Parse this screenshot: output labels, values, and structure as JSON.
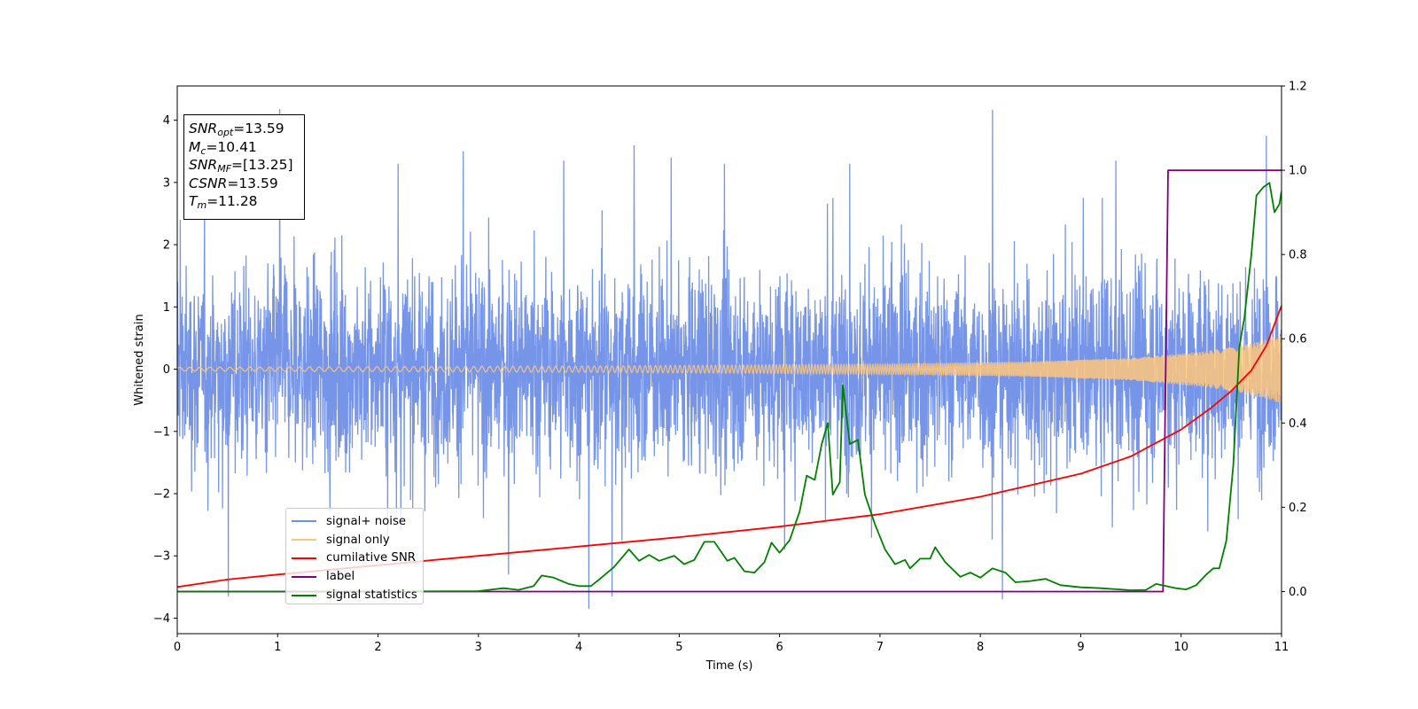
{
  "info_box": {
    "snr_opt_base": "SNR",
    "snr_opt_sub": "opt",
    "snr_opt_value": "=13.59",
    "mc_base": "M",
    "mc_sub": "c",
    "mc_value": "=10.41",
    "snr_mf_base": "SNR",
    "snr_mf_sub": "MF",
    "snr_mf_value": "=[13.25]",
    "csnr_base": "CSNR",
    "csnr_value": "=13.59",
    "tm_base": "T",
    "tm_sub": "m",
    "tm_value": "=11.28"
  },
  "legend": [
    {
      "label": "signal+ noise",
      "color": "#6f8fe8"
    },
    {
      "label": "signal only",
      "color": "#ffc77a"
    },
    {
      "label": "cumilative SNR",
      "color": "#ff0000"
    },
    {
      "label": "label",
      "color": "#800080"
    },
    {
      "label": "signal statistics",
      "color": "#008000"
    }
  ],
  "chart_data": {
    "type": "line",
    "xlabel": "Time (s)",
    "ylabel_left": "Whitened strain",
    "ylabel_right": "",
    "xlim": [
      0,
      11
    ],
    "ylim_left": [
      -4.25,
      4.55
    ],
    "ylim_right": [
      -0.1,
      1.2
    ],
    "x_ticks": [
      "0",
      "1",
      "2",
      "3",
      "4",
      "5",
      "6",
      "7",
      "8",
      "9",
      "10",
      "11"
    ],
    "y_left_ticks": [
      "−4",
      "−3",
      "−2",
      "−1",
      "0",
      "1",
      "2",
      "3",
      "4"
    ],
    "y_right_ticks": [
      "0.0",
      "0.2",
      "0.4",
      "0.6",
      "0.8",
      "1.0",
      "1.2"
    ],
    "series": [
      {
        "name": "signal+ noise",
        "axis": "left",
        "color": "#6f8fe8",
        "description_band": {
          "typical_min": -2.0,
          "typical_max": 2.0
        },
        "peaks": [
          {
            "x": 0.03,
            "y": 2.4
          },
          {
            "x": 0.51,
            "y": -3.65
          },
          {
            "x": 1.02,
            "y": 4.18
          },
          {
            "x": 2.2,
            "y": 3.3
          },
          {
            "x": 2.85,
            "y": 3.5
          },
          {
            "x": 3.3,
            "y": -3.3
          },
          {
            "x": 3.85,
            "y": 3.35
          },
          {
            "x": 4.1,
            "y": -3.85
          },
          {
            "x": 4.33,
            "y": -3.65
          },
          {
            "x": 4.55,
            "y": 3.6
          },
          {
            "x": 4.92,
            "y": 3.4
          },
          {
            "x": 5.45,
            "y": 3.3
          },
          {
            "x": 6.05,
            "y": -2.9
          },
          {
            "x": 6.7,
            "y": 3.3
          },
          {
            "x": 8.12,
            "y": 4.17
          },
          {
            "x": 8.22,
            "y": -3.7
          },
          {
            "x": 9.35,
            "y": 3.35
          },
          {
            "x": 10.85,
            "y": 3.75
          }
        ]
      },
      {
        "name": "signal only",
        "axis": "left",
        "color": "#ffc77a",
        "envelope": [
          {
            "x": 0,
            "y": 0.03
          },
          {
            "x": 4,
            "y": 0.05
          },
          {
            "x": 7,
            "y": 0.08
          },
          {
            "x": 8.5,
            "y": 0.12
          },
          {
            "x": 9.5,
            "y": 0.18
          },
          {
            "x": 10.2,
            "y": 0.28
          },
          {
            "x": 10.6,
            "y": 0.38
          },
          {
            "x": 10.9,
            "y": 0.5
          },
          {
            "x": 11,
            "y": 0.55
          }
        ]
      },
      {
        "name": "cumilative SNR",
        "axis": "left",
        "color": "#ff0000",
        "points": [
          {
            "x": 0,
            "y": -3.5
          },
          {
            "x": 0.5,
            "y": -3.38
          },
          {
            "x": 1,
            "y": -3.3
          },
          {
            "x": 2,
            "y": -3.15
          },
          {
            "x": 3,
            "y": -3.0
          },
          {
            "x": 4,
            "y": -2.85
          },
          {
            "x": 5,
            "y": -2.7
          },
          {
            "x": 6,
            "y": -2.53
          },
          {
            "x": 7,
            "y": -2.33
          },
          {
            "x": 8,
            "y": -2.05
          },
          {
            "x": 9,
            "y": -1.68
          },
          {
            "x": 9.5,
            "y": -1.4
          },
          {
            "x": 10,
            "y": -0.97
          },
          {
            "x": 10.3,
            "y": -0.62
          },
          {
            "x": 10.5,
            "y": -0.35
          },
          {
            "x": 10.7,
            "y": -0.02
          },
          {
            "x": 10.85,
            "y": 0.38
          },
          {
            "x": 11,
            "y": 1.02
          }
        ]
      },
      {
        "name": "label",
        "axis": "right",
        "color": "#800080",
        "points": [
          {
            "x": 0,
            "y": 0.0
          },
          {
            "x": 9.82,
            "y": 0.0
          },
          {
            "x": 9.87,
            "y": 1.0
          },
          {
            "x": 11,
            "y": 1.0
          }
        ]
      },
      {
        "name": "signal statistics",
        "axis": "right",
        "color": "#008000",
        "points": [
          {
            "x": 0,
            "y": 0.0
          },
          {
            "x": 1,
            "y": 0.0
          },
          {
            "x": 2,
            "y": 0.0
          },
          {
            "x": 3,
            "y": 0.001
          },
          {
            "x": 3.25,
            "y": 0.008
          },
          {
            "x": 3.4,
            "y": 0.004
          },
          {
            "x": 3.55,
            "y": 0.013
          },
          {
            "x": 3.63,
            "y": 0.038
          },
          {
            "x": 3.75,
            "y": 0.033
          },
          {
            "x": 3.9,
            "y": 0.018
          },
          {
            "x": 4.0,
            "y": 0.013
          },
          {
            "x": 4.12,
            "y": 0.013
          },
          {
            "x": 4.2,
            "y": 0.028
          },
          {
            "x": 4.35,
            "y": 0.058
          },
          {
            "x": 4.5,
            "y": 0.1
          },
          {
            "x": 4.6,
            "y": 0.073
          },
          {
            "x": 4.7,
            "y": 0.087
          },
          {
            "x": 4.8,
            "y": 0.073
          },
          {
            "x": 4.95,
            "y": 0.085
          },
          {
            "x": 5.05,
            "y": 0.065
          },
          {
            "x": 5.15,
            "y": 0.075
          },
          {
            "x": 5.25,
            "y": 0.118
          },
          {
            "x": 5.35,
            "y": 0.118
          },
          {
            "x": 5.48,
            "y": 0.073
          },
          {
            "x": 5.55,
            "y": 0.08
          },
          {
            "x": 5.65,
            "y": 0.048
          },
          {
            "x": 5.75,
            "y": 0.045
          },
          {
            "x": 5.85,
            "y": 0.07
          },
          {
            "x": 5.92,
            "y": 0.116
          },
          {
            "x": 6.0,
            "y": 0.092
          },
          {
            "x": 6.1,
            "y": 0.122
          },
          {
            "x": 6.2,
            "y": 0.19
          },
          {
            "x": 6.27,
            "y": 0.275
          },
          {
            "x": 6.35,
            "y": 0.265
          },
          {
            "x": 6.42,
            "y": 0.35
          },
          {
            "x": 6.48,
            "y": 0.4
          },
          {
            "x": 6.53,
            "y": 0.23
          },
          {
            "x": 6.6,
            "y": 0.26
          },
          {
            "x": 6.63,
            "y": 0.49
          },
          {
            "x": 6.7,
            "y": 0.35
          },
          {
            "x": 6.78,
            "y": 0.36
          },
          {
            "x": 6.85,
            "y": 0.23
          },
          {
            "x": 6.95,
            "y": 0.16
          },
          {
            "x": 7.05,
            "y": 0.1
          },
          {
            "x": 7.15,
            "y": 0.065
          },
          {
            "x": 7.25,
            "y": 0.075
          },
          {
            "x": 7.3,
            "y": 0.055
          },
          {
            "x": 7.4,
            "y": 0.078
          },
          {
            "x": 7.5,
            "y": 0.078
          },
          {
            "x": 7.55,
            "y": 0.105
          },
          {
            "x": 7.65,
            "y": 0.07
          },
          {
            "x": 7.8,
            "y": 0.035
          },
          {
            "x": 7.9,
            "y": 0.045
          },
          {
            "x": 8.0,
            "y": 0.033
          },
          {
            "x": 8.12,
            "y": 0.055
          },
          {
            "x": 8.25,
            "y": 0.045
          },
          {
            "x": 8.35,
            "y": 0.022
          },
          {
            "x": 8.5,
            "y": 0.025
          },
          {
            "x": 8.65,
            "y": 0.03
          },
          {
            "x": 8.8,
            "y": 0.015
          },
          {
            "x": 9.0,
            "y": 0.01
          },
          {
            "x": 9.2,
            "y": 0.008
          },
          {
            "x": 9.5,
            "y": 0.003
          },
          {
            "x": 9.65,
            "y": 0.004
          },
          {
            "x": 9.75,
            "y": 0.018
          },
          {
            "x": 9.95,
            "y": 0.008
          },
          {
            "x": 10.05,
            "y": 0.005
          },
          {
            "x": 10.15,
            "y": 0.015
          },
          {
            "x": 10.25,
            "y": 0.04
          },
          {
            "x": 10.32,
            "y": 0.055
          },
          {
            "x": 10.38,
            "y": 0.055
          },
          {
            "x": 10.45,
            "y": 0.12
          },
          {
            "x": 10.52,
            "y": 0.3
          },
          {
            "x": 10.58,
            "y": 0.58
          },
          {
            "x": 10.63,
            "y": 0.65
          },
          {
            "x": 10.7,
            "y": 0.8
          },
          {
            "x": 10.75,
            "y": 0.94
          },
          {
            "x": 10.82,
            "y": 0.96
          },
          {
            "x": 10.88,
            "y": 0.97
          },
          {
            "x": 10.93,
            "y": 0.9
          },
          {
            "x": 10.98,
            "y": 0.92
          },
          {
            "x": 11.0,
            "y": 0.95
          }
        ]
      }
    ],
    "grid": false,
    "legend_position": "lower-left"
  }
}
